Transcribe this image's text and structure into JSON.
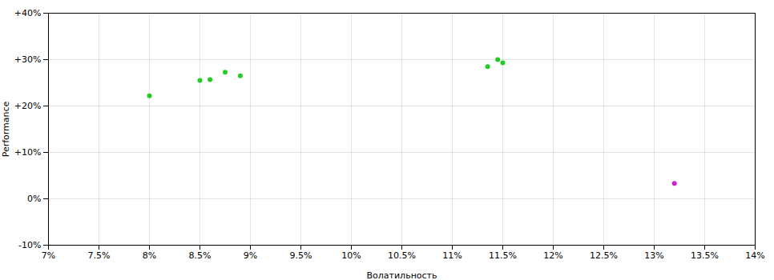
{
  "chart_data": {
    "type": "scatter",
    "xlabel": "Волатильность",
    "ylabel": "Performance",
    "xlim": [
      0.07,
      0.14
    ],
    "ylim": [
      -0.1,
      0.4
    ],
    "xticks": [
      {
        "value": 0.07,
        "label": "7%"
      },
      {
        "value": 0.075,
        "label": "7.5%"
      },
      {
        "value": 0.08,
        "label": "8%"
      },
      {
        "value": 0.085,
        "label": "8.5%"
      },
      {
        "value": 0.09,
        "label": "9%"
      },
      {
        "value": 0.095,
        "label": "9.5%"
      },
      {
        "value": 0.1,
        "label": "10%"
      },
      {
        "value": 0.105,
        "label": "10.5%"
      },
      {
        "value": 0.11,
        "label": "11%"
      },
      {
        "value": 0.115,
        "label": "11.5%"
      },
      {
        "value": 0.12,
        "label": "12%"
      },
      {
        "value": 0.125,
        "label": "12.5%"
      },
      {
        "value": 0.13,
        "label": "13%"
      },
      {
        "value": 0.135,
        "label": "13.5%"
      },
      {
        "value": 0.14,
        "label": "14%"
      }
    ],
    "yticks": [
      {
        "value": -0.1,
        "label": "-10%"
      },
      {
        "value": 0.0,
        "label": "0%"
      },
      {
        "value": 0.1,
        "label": "+10%"
      },
      {
        "value": 0.2,
        "label": "+20%"
      },
      {
        "value": 0.3,
        "label": "+30%"
      },
      {
        "value": 0.4,
        "label": "+40%"
      }
    ],
    "grid": true,
    "series": [
      {
        "color": "#22cc22",
        "x": [
          0.08,
          0.085,
          0.086,
          0.0875,
          0.089,
          0.1135,
          0.1145,
          0.115
        ],
        "values": [
          0.222,
          0.255,
          0.257,
          0.273,
          0.265,
          0.285,
          0.3,
          0.293
        ]
      },
      {
        "color": "#cc22cc",
        "x": [
          0.132
        ],
        "values": [
          0.033
        ]
      }
    ]
  }
}
